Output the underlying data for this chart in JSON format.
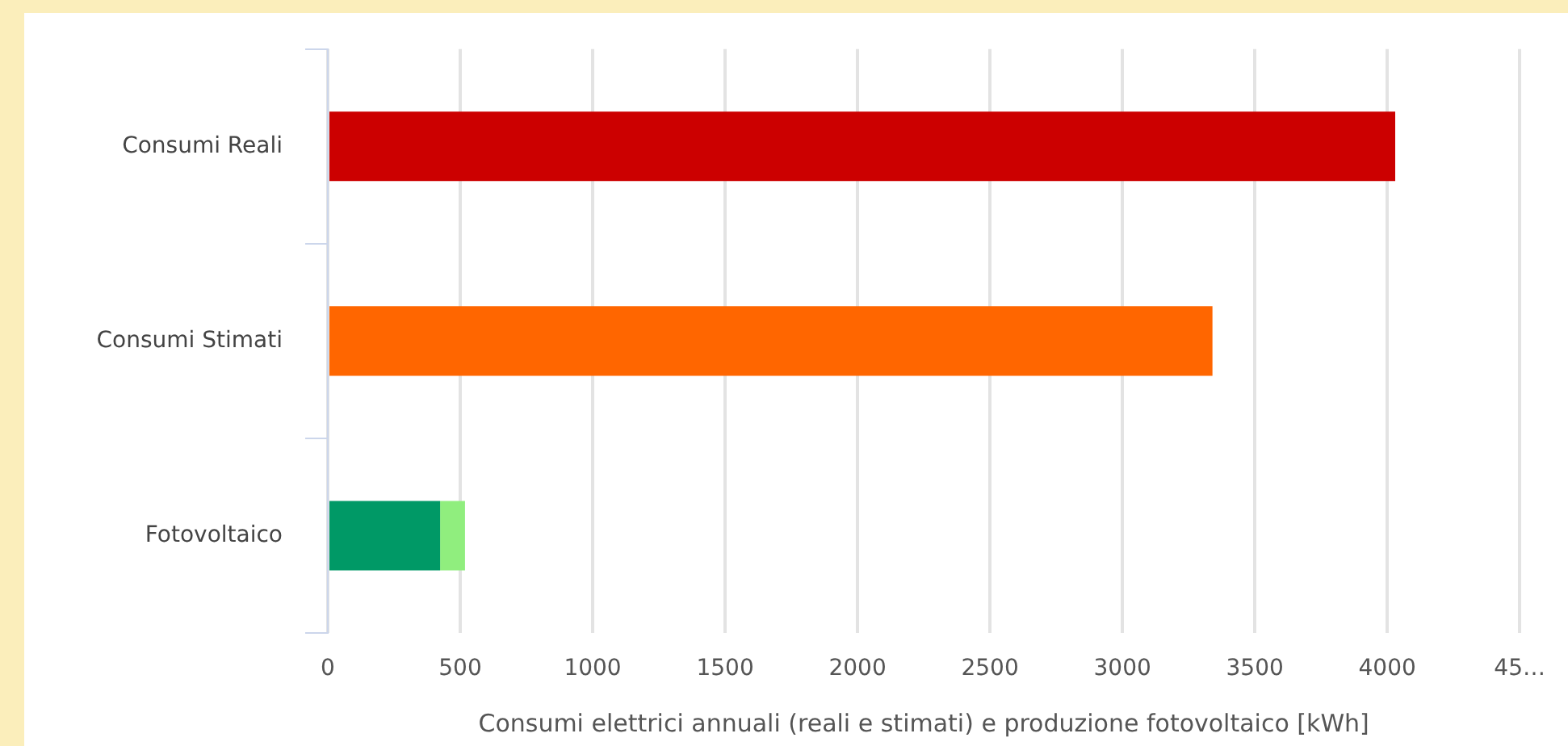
{
  "chart_data": {
    "type": "bar",
    "orientation": "horizontal",
    "stacked": true,
    "xlabel": "Consumi elettrici annuali (reali e stimati) e produzione fotovoltaico [kWh]",
    "categories": [
      "Consumi Reali",
      "Consumi Stimati",
      "Fotovoltaico"
    ],
    "series": [
      {
        "values": [
          4030,
          3340,
          424
        ],
        "colors": [
          "#cc0000",
          "#ff6600",
          "#009966"
        ]
      },
      {
        "values": [
          null,
          null,
          94
        ],
        "color": "#90ee7e"
      }
    ],
    "xlim": [
      0,
      4500
    ],
    "xticks": [
      0,
      500,
      1000,
      1500,
      2000,
      2500,
      3000,
      3500,
      4000,
      {
        "value": 4500,
        "label": "45…"
      }
    ],
    "grid": "x",
    "legend": false
  }
}
